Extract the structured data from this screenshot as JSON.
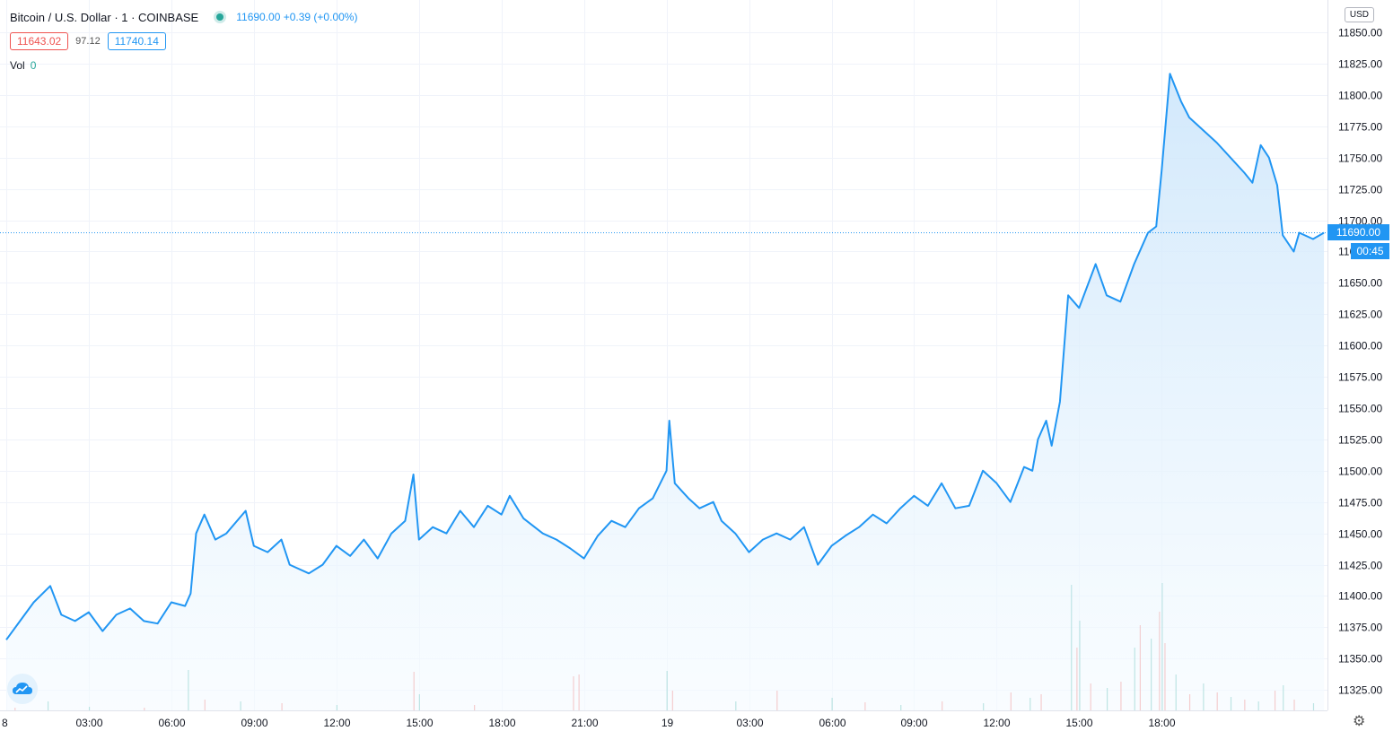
{
  "symbol": {
    "title": "Bitcoin / U.S. Dollar · 1 · COINBASE",
    "ohlc_summary": "11690.00 +0.39 (+0.00%)",
    "range_low": "11643.02",
    "range_spread": "97.12",
    "range_high": "11740.14"
  },
  "volume_legend": {
    "label": "Vol",
    "value": "0"
  },
  "currency_badge": "USD",
  "last_price_label": "11690.00",
  "countdown_label": "00:45",
  "icons": {
    "logo": "tradingview-cloud-icon",
    "settings": "gear-icon"
  },
  "colors": {
    "line": "#2196f3",
    "area_fill_top": "#cde6fb",
    "area_fill_bottom": "#f5fbff",
    "volume_up": "#26a69a",
    "volume_down": "#ef5350",
    "grid": "#f0f3fa",
    "price_label_bg": "#2196f3"
  },
  "chart_data": {
    "type": "area",
    "title": "",
    "xlabel": "",
    "ylabel": "",
    "grid": true,
    "x_ticks": [
      "8",
      "03:00",
      "06:00",
      "09:00",
      "12:00",
      "15:00",
      "18:00",
      "21:00",
      "19",
      "03:00",
      "06:00",
      "09:00",
      "12:00",
      "15:00",
      "18:00"
    ],
    "y_ticks": [
      "11325.00",
      "11350.00",
      "11375.00",
      "11400.00",
      "11425.00",
      "11450.00",
      "11475.00",
      "11500.00",
      "11525.00",
      "11550.00",
      "11575.00",
      "11600.00",
      "11625.00",
      "11650.00",
      "11675.00",
      "11700.00",
      "11725.00",
      "11750.00",
      "11775.00",
      "11800.00",
      "11825.00",
      "11850.00"
    ],
    "ylim": [
      11311,
      11862
    ],
    "x_unit": "hours since 8th 00:00 (1-minute bars)",
    "last_price": 11690.0,
    "price_series": [
      [
        0.0,
        11365
      ],
      [
        0.5,
        11380
      ],
      [
        1.0,
        11395
      ],
      [
        1.6,
        11408
      ],
      [
        2.0,
        11385
      ],
      [
        2.5,
        11380
      ],
      [
        3.0,
        11387
      ],
      [
        3.5,
        11372
      ],
      [
        4.0,
        11385
      ],
      [
        4.5,
        11390
      ],
      [
        5.0,
        11380
      ],
      [
        5.5,
        11378
      ],
      [
        6.0,
        11395
      ],
      [
        6.5,
        11392
      ],
      [
        6.7,
        11402
      ],
      [
        6.9,
        11450
      ],
      [
        7.2,
        11465
      ],
      [
        7.6,
        11445
      ],
      [
        8.0,
        11450
      ],
      [
        8.7,
        11468
      ],
      [
        9.0,
        11440
      ],
      [
        9.5,
        11435
      ],
      [
        10.0,
        11445
      ],
      [
        10.3,
        11425
      ],
      [
        11.0,
        11418
      ],
      [
        11.5,
        11425
      ],
      [
        12.0,
        11440
      ],
      [
        12.5,
        11432
      ],
      [
        13.0,
        11445
      ],
      [
        13.5,
        11430
      ],
      [
        14.0,
        11450
      ],
      [
        14.5,
        11460
      ],
      [
        14.8,
        11497
      ],
      [
        15.0,
        11445
      ],
      [
        15.5,
        11455
      ],
      [
        16.0,
        11450
      ],
      [
        16.5,
        11468
      ],
      [
        17.0,
        11455
      ],
      [
        17.5,
        11472
      ],
      [
        18.0,
        11465
      ],
      [
        18.3,
        11480
      ],
      [
        18.8,
        11462
      ],
      [
        19.5,
        11450
      ],
      [
        20.0,
        11445
      ],
      [
        20.5,
        11438
      ],
      [
        21.0,
        11430
      ],
      [
        21.5,
        11448
      ],
      [
        22.0,
        11460
      ],
      [
        22.5,
        11455
      ],
      [
        23.0,
        11470
      ],
      [
        23.5,
        11478
      ],
      [
        24.0,
        11500
      ],
      [
        24.1,
        11540
      ],
      [
        24.3,
        11490
      ],
      [
        24.8,
        11478
      ],
      [
        25.2,
        11470
      ],
      [
        25.7,
        11475
      ],
      [
        26.0,
        11460
      ],
      [
        26.5,
        11450
      ],
      [
        27.0,
        11435
      ],
      [
        27.5,
        11445
      ],
      [
        28.0,
        11450
      ],
      [
        28.5,
        11445
      ],
      [
        29.0,
        11455
      ],
      [
        29.5,
        11425
      ],
      [
        30.0,
        11440
      ],
      [
        30.5,
        11448
      ],
      [
        31.0,
        11455
      ],
      [
        31.5,
        11465
      ],
      [
        32.0,
        11458
      ],
      [
        32.5,
        11470
      ],
      [
        33.0,
        11480
      ],
      [
        33.5,
        11472
      ],
      [
        34.0,
        11490
      ],
      [
        34.5,
        11470
      ],
      [
        35.0,
        11472
      ],
      [
        35.5,
        11500
      ],
      [
        36.0,
        11490
      ],
      [
        36.5,
        11475
      ],
      [
        37.0,
        11503
      ],
      [
        37.3,
        11500
      ],
      [
        37.5,
        11525
      ],
      [
        37.8,
        11540
      ],
      [
        38.0,
        11520
      ],
      [
        38.3,
        11555
      ],
      [
        38.6,
        11640
      ],
      [
        39.0,
        11630
      ],
      [
        39.6,
        11665
      ],
      [
        40.0,
        11640
      ],
      [
        40.5,
        11635
      ],
      [
        41.0,
        11665
      ],
      [
        41.5,
        11690
      ],
      [
        41.8,
        11695
      ],
      [
        42.0,
        11740
      ],
      [
        42.3,
        11817
      ],
      [
        42.7,
        11795
      ],
      [
        43.0,
        11782
      ],
      [
        43.5,
        11772
      ],
      [
        44.0,
        11762
      ],
      [
        44.5,
        11750
      ],
      [
        45.0,
        11738
      ],
      [
        45.3,
        11730
      ],
      [
        45.6,
        11760
      ],
      [
        45.9,
        11750
      ],
      [
        46.2,
        11728
      ],
      [
        46.4,
        11688
      ],
      [
        46.8,
        11675
      ],
      [
        47.0,
        11690
      ],
      [
        47.5,
        11685
      ],
      [
        47.9,
        11690
      ]
    ],
    "volume_bars": [
      [
        0.3,
        3,
        "down"
      ],
      [
        1.5,
        10,
        "up"
      ],
      [
        3.0,
        4,
        "up"
      ],
      [
        5.0,
        3,
        "down"
      ],
      [
        6.6,
        45,
        "up"
      ],
      [
        7.2,
        12,
        "down"
      ],
      [
        8.5,
        10,
        "up"
      ],
      [
        10.0,
        8,
        "down"
      ],
      [
        12.0,
        6,
        "up"
      ],
      [
        14.8,
        43,
        "down"
      ],
      [
        15.0,
        18,
        "up"
      ],
      [
        17.0,
        6,
        "down"
      ],
      [
        20.6,
        38,
        "down"
      ],
      [
        20.8,
        40,
        "down"
      ],
      [
        24.0,
        44,
        "up"
      ],
      [
        24.2,
        22,
        "down"
      ],
      [
        26.5,
        10,
        "up"
      ],
      [
        28.0,
        22,
        "down"
      ],
      [
        30.0,
        14,
        "up"
      ],
      [
        31.2,
        9,
        "down"
      ],
      [
        32.5,
        6,
        "up"
      ],
      [
        34.0,
        10,
        "down"
      ],
      [
        35.5,
        8,
        "up"
      ],
      [
        36.5,
        20,
        "down"
      ],
      [
        37.2,
        14,
        "up"
      ],
      [
        37.6,
        18,
        "down"
      ],
      [
        38.7,
        140,
        "up"
      ],
      [
        38.9,
        70,
        "down"
      ],
      [
        39.0,
        100,
        "up"
      ],
      [
        39.4,
        30,
        "down"
      ],
      [
        40.0,
        25,
        "up"
      ],
      [
        40.5,
        32,
        "down"
      ],
      [
        41.0,
        70,
        "up"
      ],
      [
        41.2,
        95,
        "down"
      ],
      [
        41.6,
        80,
        "up"
      ],
      [
        41.9,
        110,
        "down"
      ],
      [
        42.0,
        142,
        "up"
      ],
      [
        42.1,
        75,
        "down"
      ],
      [
        42.5,
        40,
        "up"
      ],
      [
        43.0,
        18,
        "down"
      ],
      [
        43.5,
        30,
        "up"
      ],
      [
        44.0,
        20,
        "down"
      ],
      [
        44.5,
        15,
        "up"
      ],
      [
        45.0,
        12,
        "down"
      ],
      [
        45.5,
        10,
        "up"
      ],
      [
        46.1,
        22,
        "down"
      ],
      [
        46.4,
        28,
        "up"
      ],
      [
        46.8,
        12,
        "down"
      ],
      [
        47.5,
        8,
        "up"
      ]
    ]
  }
}
